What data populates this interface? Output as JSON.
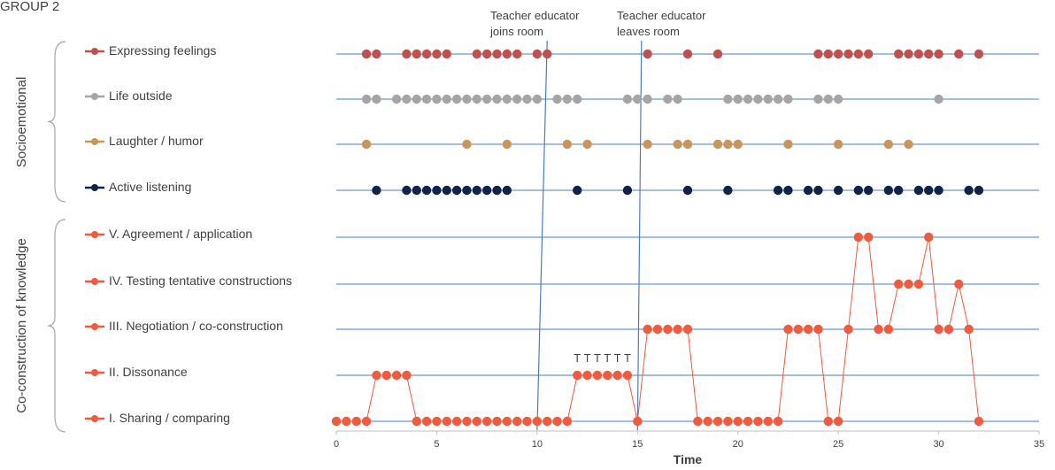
{
  "chart_data": {
    "type": "scatter",
    "title": "GROUP 2",
    "xlabel": "Time",
    "xlim": [
      0,
      35
    ],
    "xticks": [
      "0",
      "5",
      "10",
      "15",
      "20",
      "25",
      "30",
      "35"
    ],
    "groups": [
      "Socioemotional",
      "Co-construction of knowledge"
    ],
    "annotations": [
      "Teacher educator joins room",
      "Teacher educator leaves room"
    ],
    "annotation_lines": [
      {
        "x_bottom": 10,
        "x_top": 10.5
      },
      {
        "x_bottom": 15,
        "x_top": 15.2
      }
    ],
    "t_marks": {
      "label": "T",
      "x": [
        12,
        12.5,
        13,
        13.5,
        14,
        14.5
      ]
    },
    "socioemotional": [
      {
        "name": "Expressing feelings",
        "color": "#c0504d",
        "x": [
          1.5,
          2,
          3.5,
          4,
          4.5,
          5,
          5.5,
          7,
          7.5,
          8,
          8.5,
          9,
          10,
          10.5,
          15.5,
          17.5,
          19,
          24,
          24.5,
          25,
          25.5,
          26,
          26.5,
          28,
          28.5,
          29,
          29.5,
          30,
          31,
          32
        ]
      },
      {
        "name": "Life outside",
        "color": "#a5a5a5",
        "x": [
          1.5,
          2,
          3,
          3.5,
          4,
          4.5,
          5,
          5.5,
          6,
          6.5,
          7,
          7.5,
          8,
          8.5,
          9,
          9.5,
          10,
          11,
          11.5,
          12,
          14.5,
          15,
          15.5,
          16.5,
          17,
          19.5,
          20,
          20.5,
          21,
          21.5,
          22,
          22.5,
          24,
          24.5,
          25,
          30
        ]
      },
      {
        "name": "Laughter / humor",
        "color": "#c9965a",
        "x": [
          1.5,
          6.5,
          8.5,
          11.5,
          12.5,
          15.5,
          17,
          17.5,
          19,
          19.5,
          20,
          22.5,
          25,
          27.5,
          28.5
        ]
      },
      {
        "name": "Active listening",
        "color": "#10234b",
        "x": [
          2,
          3.5,
          4,
          4.5,
          5,
          5.5,
          6,
          6.5,
          7,
          7.5,
          8,
          8.5,
          12,
          14.5,
          17.5,
          19.5,
          22,
          22.5,
          23.5,
          24,
          25,
          26,
          26.5,
          27.5,
          28,
          29,
          29.5,
          30,
          31.5,
          32
        ]
      }
    ],
    "coconstruction": {
      "color": "#f15a3c",
      "levels": [
        "V. Agreement / application",
        "IV. Testing tentative constructions",
        "III. Negotiation / co-construction",
        "II. Dissonance",
        "I. Sharing / comparing"
      ],
      "points": [
        [
          0,
          1
        ],
        [
          0.5,
          1
        ],
        [
          1,
          1
        ],
        [
          1.5,
          1
        ],
        [
          2,
          2
        ],
        [
          2.5,
          2
        ],
        [
          3,
          2
        ],
        [
          3.5,
          2
        ],
        [
          4,
          1
        ],
        [
          4.5,
          1
        ],
        [
          5,
          1
        ],
        [
          5.5,
          1
        ],
        [
          6,
          1
        ],
        [
          6.5,
          1
        ],
        [
          7,
          1
        ],
        [
          7.5,
          1
        ],
        [
          8,
          1
        ],
        [
          8.5,
          1
        ],
        [
          9,
          1
        ],
        [
          9.5,
          1
        ],
        [
          10,
          1
        ],
        [
          10.5,
          1
        ],
        [
          11,
          1
        ],
        [
          11.5,
          1
        ],
        [
          12,
          2
        ],
        [
          12.5,
          2
        ],
        [
          13,
          2
        ],
        [
          13.5,
          2
        ],
        [
          14,
          2
        ],
        [
          14.5,
          2
        ],
        [
          15,
          1
        ],
        [
          15.5,
          3
        ],
        [
          16,
          3
        ],
        [
          16.5,
          3
        ],
        [
          17,
          3
        ],
        [
          17.5,
          3
        ],
        [
          18,
          1
        ],
        [
          18.5,
          1
        ],
        [
          19,
          1
        ],
        [
          19.5,
          1
        ],
        [
          20,
          1
        ],
        [
          20.5,
          1
        ],
        [
          21,
          1
        ],
        [
          21.5,
          1
        ],
        [
          22,
          1
        ],
        [
          22.5,
          3
        ],
        [
          23,
          3
        ],
        [
          23.5,
          3
        ],
        [
          24,
          3
        ],
        [
          24.5,
          1
        ],
        [
          25,
          1
        ],
        [
          25.5,
          3
        ],
        [
          26,
          5
        ],
        [
          26.5,
          5
        ],
        [
          27,
          3
        ],
        [
          27.5,
          3
        ],
        [
          28,
          4
        ],
        [
          28.5,
          4
        ],
        [
          29,
          4
        ],
        [
          29.5,
          5
        ],
        [
          30,
          3
        ],
        [
          30.5,
          3
        ],
        [
          31,
          4
        ],
        [
          31.5,
          3
        ],
        [
          32,
          1
        ]
      ]
    }
  }
}
